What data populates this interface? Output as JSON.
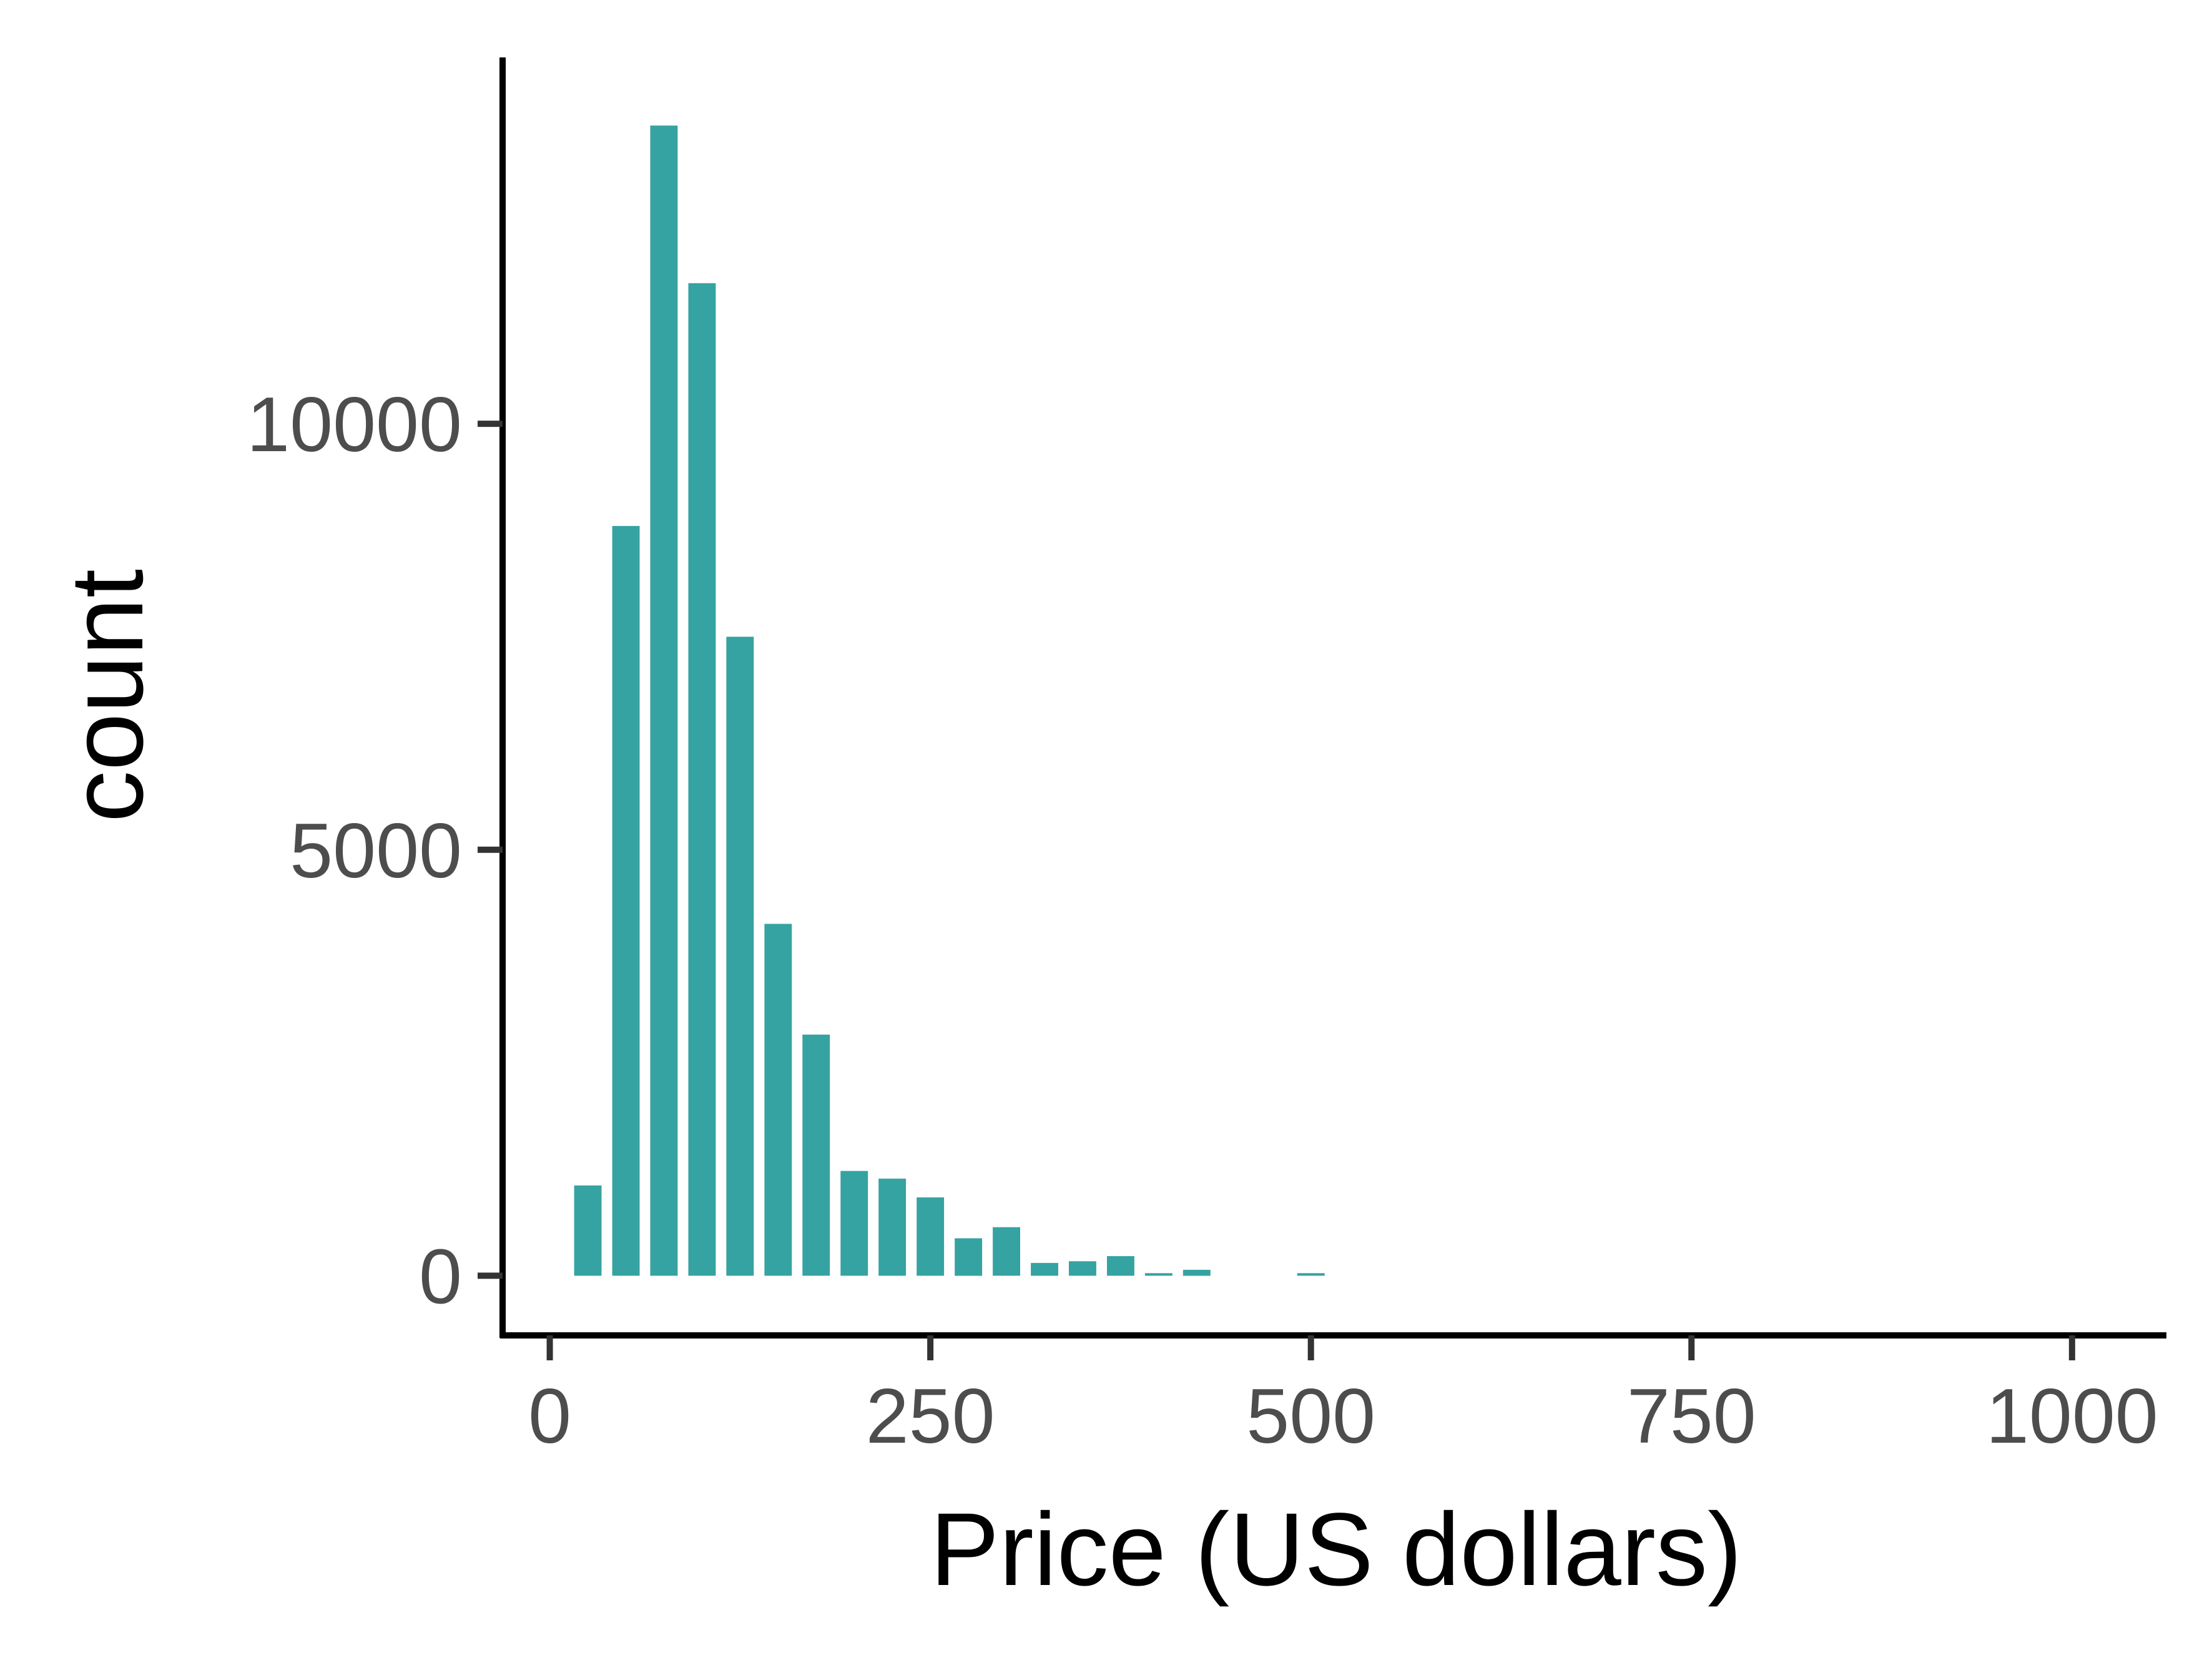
{
  "chart_data": {
    "type": "bar",
    "title": "",
    "xlabel": "Price (US dollars)",
    "ylabel": "count",
    "xlim": [
      -31,
      1062
    ],
    "ylim": [
      -700,
      14300
    ],
    "x_ticks": [
      0,
      250,
      500,
      750,
      1000
    ],
    "y_ticks": [
      0,
      5000,
      10000
    ],
    "bin_width": 25,
    "x": [
      25,
      50,
      75,
      100,
      125,
      150,
      175,
      200,
      225,
      250,
      275,
      300,
      325,
      350,
      375,
      400,
      425,
      500
    ],
    "values": [
      1060,
      8800,
      13500,
      11650,
      7500,
      4130,
      2830,
      1230,
      1140,
      920,
      440,
      570,
      150,
      170,
      230,
      30,
      70,
      30
    ],
    "grid": false,
    "legend": "none",
    "bar_color": "#35A3A1"
  }
}
